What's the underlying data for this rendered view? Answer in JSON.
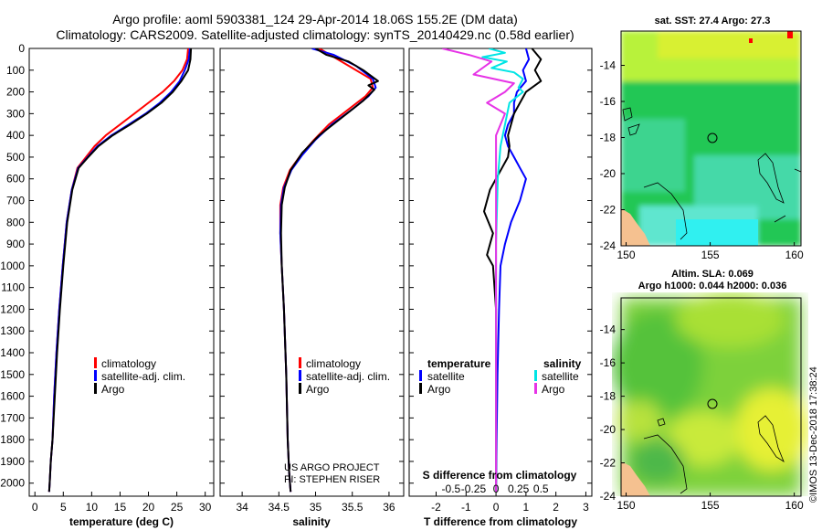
{
  "title_line1": "Argo profile: aoml 5903381_124 29-Apr-2014 18.06S 155.2E (DM data)",
  "title_line2": "Climatology: CARS2009. Satellite-adjusted climatology: synTS_20140429.nc (0.58d earlier)",
  "colors": {
    "climatology": "#ff0000",
    "satellite": "#0000ff",
    "argo": "#000000",
    "sat_temp_diff": "#00e5e5",
    "sat_sal_diff": "#e633e6"
  },
  "depth_ticks": [
    "0",
    "100",
    "200",
    "300",
    "400",
    "500",
    "600",
    "700",
    "800",
    "900",
    "1000",
    "1100",
    "1200",
    "1300",
    "1400",
    "1500",
    "1600",
    "1700",
    "1800",
    "1900",
    "2000"
  ],
  "chart_data": [
    {
      "type": "line",
      "name": "temperature",
      "xlabel": "temperature (deg C)",
      "ylabel": "depth",
      "xlim": [
        -1,
        31.5
      ],
      "ylim": [
        2060,
        0
      ],
      "xticks": [
        "0",
        "5",
        "10",
        "15",
        "20",
        "25",
        "30"
      ],
      "legend": {
        "placement": "lower-center",
        "entries": [
          "climatology",
          "satellite-adj. clim.",
          "Argo"
        ]
      },
      "series": [
        {
          "name": "climatology",
          "x": [
            27.0,
            26.8,
            26.0,
            24.5,
            22.5,
            20.0,
            17.5,
            15.0,
            12.5,
            10.5,
            9.0,
            7.5,
            6.5,
            5.6,
            4.9,
            4.3,
            3.8,
            3.4,
            3.1,
            2.8,
            2.6,
            2.5
          ],
          "y": [
            0,
            50,
            100,
            150,
            200,
            250,
            300,
            350,
            400,
            450,
            500,
            550,
            650,
            800,
            1000,
            1200,
            1400,
            1600,
            1800,
            1900,
            2000,
            2040
          ]
        },
        {
          "name": "satellite-adj. clim.",
          "x": [
            27.3,
            27.1,
            26.4,
            25.5,
            24.0,
            22.0,
            19.5,
            16.5,
            13.5,
            11.0,
            9.3,
            7.6,
            6.5,
            5.6,
            4.9,
            4.3,
            3.8,
            3.4,
            3.1,
            2.8,
            2.6,
            2.5
          ],
          "y": [
            0,
            50,
            100,
            150,
            200,
            250,
            300,
            350,
            400,
            450,
            500,
            550,
            650,
            800,
            1000,
            1200,
            1400,
            1600,
            1800,
            1900,
            2000,
            2040
          ]
        },
        {
          "name": "Argo",
          "x": [
            27.5,
            27.4,
            27.0,
            25.8,
            24.3,
            22.3,
            19.7,
            16.8,
            13.7,
            11.2,
            9.4,
            7.7,
            6.6,
            5.7,
            5.0,
            4.4,
            3.9,
            3.5,
            3.1,
            2.8,
            2.6,
            2.5
          ],
          "y": [
            0,
            50,
            100,
            150,
            200,
            250,
            300,
            350,
            400,
            450,
            500,
            550,
            650,
            800,
            1000,
            1200,
            1400,
            1600,
            1800,
            1900,
            2000,
            2040
          ]
        }
      ]
    },
    {
      "type": "line",
      "name": "salinity",
      "xlabel": "salinity",
      "xlim": [
        33.7,
        36.2
      ],
      "ylim": [
        2060,
        0
      ],
      "xticks": [
        "34",
        "34.5",
        "35",
        "35.5",
        "36"
      ],
      "legend": {
        "placement": "lower-center",
        "entries": [
          "climatology",
          "satellite-adj. clim.",
          "Argo"
        ]
      },
      "annotation_line1": "US ARGO PROJECT",
      "annotation_line2": "PI: STEPHEN RISER",
      "series": [
        {
          "name": "climatology",
          "x": [
            35.05,
            35.2,
            35.45,
            35.75,
            35.78,
            35.68,
            35.45,
            35.18,
            34.98,
            34.8,
            34.65,
            34.56,
            34.52,
            34.52,
            34.54,
            34.57,
            34.6,
            34.62,
            34.64,
            34.66
          ],
          "y": [
            0,
            30,
            80,
            140,
            180,
            220,
            280,
            350,
            420,
            490,
            560,
            640,
            720,
            850,
            1000,
            1200,
            1500,
            1800,
            1950,
            2040
          ]
        },
        {
          "name": "satellite-adj. clim.",
          "x": [
            34.95,
            35.25,
            35.55,
            35.78,
            35.82,
            35.72,
            35.5,
            35.22,
            35.0,
            34.82,
            34.67,
            34.57,
            34.53,
            34.52,
            34.54,
            34.57,
            34.6,
            34.62,
            34.64,
            34.66
          ],
          "y": [
            0,
            30,
            80,
            140,
            180,
            220,
            280,
            350,
            420,
            490,
            560,
            640,
            720,
            850,
            1000,
            1200,
            1500,
            1800,
            1950,
            2040
          ]
        },
        {
          "name": "Argo",
          "x": [
            35.0,
            35.15,
            35.45,
            35.65,
            35.85,
            35.72,
            35.8,
            35.65,
            35.35,
            35.05,
            34.82,
            34.66,
            34.58,
            34.54,
            34.53,
            34.54,
            34.57,
            34.6,
            34.62,
            34.64,
            34.66
          ],
          "y": [
            0,
            30,
            60,
            100,
            150,
            170,
            190,
            240,
            320,
            400,
            480,
            560,
            640,
            720,
            850,
            1000,
            1200,
            1500,
            1800,
            1950,
            2040
          ]
        }
      ]
    },
    {
      "type": "line",
      "name": "differences",
      "xlabel": "T difference from climatology",
      "xlabel_top": "S difference from climatology",
      "xlim": [
        -2.9,
        3.2
      ],
      "ylim": [
        2060,
        0
      ],
      "xticks": [
        "-2",
        "-1",
        "0",
        "1",
        "2",
        "3"
      ],
      "xticks_s": [
        "-0.5",
        "-0.25",
        "0",
        "0.25",
        "0.5"
      ],
      "legend": {
        "placement": "lower",
        "temperature_title": "temperature",
        "salinity_title": "salinity",
        "entries_left": [
          "satellite",
          "Argo"
        ],
        "entries_right": [
          "satellite",
          "Argo"
        ]
      },
      "series": [
        {
          "name": "temperature satellite",
          "x": [
            1.0,
            1.1,
            0.9,
            1.0,
            0.7,
            0.6,
            0.6,
            0.4,
            0.3,
            0.4,
            0.6,
            0.8,
            1.0,
            0.8,
            0.5,
            0.3,
            0.15,
            0.1,
            0.05,
            0.02,
            0.0
          ],
          "y": [
            0,
            50,
            100,
            150,
            200,
            250,
            300,
            350,
            400,
            450,
            500,
            550,
            600,
            700,
            800,
            900,
            1000,
            1200,
            1500,
            1800,
            2040
          ]
        },
        {
          "name": "temperature Argo",
          "x": [
            1.2,
            1.5,
            1.3,
            1.5,
            1.0,
            0.8,
            0.6,
            0.5,
            0.4,
            0.45,
            0.4,
            0.2,
            -0.2,
            -0.4,
            -0.1,
            -0.3,
            -0.1,
            0.0,
            0.0,
            0.0
          ],
          "y": [
            0,
            50,
            100,
            150,
            200,
            250,
            300,
            350,
            400,
            450,
            500,
            550,
            650,
            750,
            850,
            950,
            1000,
            1200,
            1600,
            2040
          ]
        },
        {
          "name": "salinity satellite",
          "x": [
            -0.08,
            0.1,
            -0.15,
            0.12,
            -0.05,
            0.2,
            0.3,
            0.25,
            0.3,
            0.15,
            0.1,
            0.05,
            0.02,
            0.0,
            0.0
          ],
          "y": [
            0,
            20,
            40,
            60,
            90,
            110,
            140,
            180,
            200,
            250,
            350,
            450,
            600,
            900,
            2040
          ]
        },
        {
          "name": "salinity Argo",
          "x": [
            -0.6,
            -0.3,
            -0.05,
            -0.25,
            0.2,
            0.1,
            -0.1,
            0.1,
            0.0,
            0.0
          ],
          "y": [
            0,
            30,
            60,
            120,
            160,
            200,
            250,
            300,
            400,
            2040
          ]
        }
      ]
    },
    {
      "type": "heatmap",
      "name": "sst-map",
      "title": "sat. SST: 27.4 Argo: 27.3",
      "xlim": [
        149.7,
        160.4
      ],
      "ylim": [
        -24,
        -12.1
      ],
      "xticks": [
        "150",
        "155",
        "160"
      ],
      "yticks": [
        "-14",
        "-16",
        "-18",
        "-20",
        "-22",
        "-24"
      ],
      "marker_lon": 155.2,
      "marker_lat": -18.06
    },
    {
      "type": "heatmap",
      "name": "sla-map",
      "title_line1": "Altim. SLA: 0.069",
      "title_line2": "Argo h1000: 0.044 h2000: 0.036",
      "xlim": [
        149.7,
        160.4
      ],
      "ylim": [
        -24,
        -12.1
      ],
      "xticks": [
        "150",
        "155",
        "160"
      ],
      "yticks": [
        "-14",
        "-16",
        "-18",
        "-20",
        "-22",
        "-24"
      ],
      "marker_lon": 155.2,
      "marker_lat": -18.06
    }
  ],
  "credit": "©IMOS 13-Dec-2018 17:38:24"
}
